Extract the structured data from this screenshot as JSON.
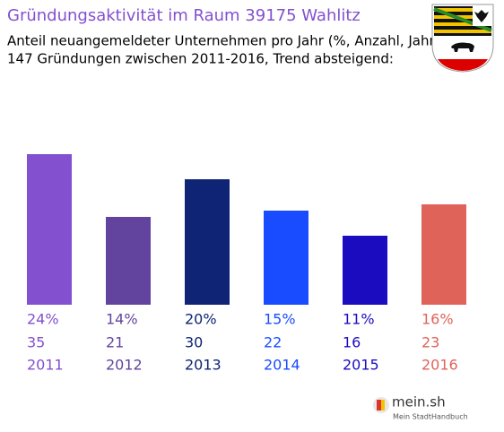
{
  "chart_data": {
    "type": "bar",
    "title": "Gründungsaktivität im Raum 39175 Wahlitz",
    "subtitle": [
      "Anteil neuangemeldeter Unternehmen pro Jahr (%, Anzahl, Jahr)",
      "147 Gründungen zwischen 2011-2016, Trend absteigend:"
    ],
    "categories": [
      "2011",
      "2012",
      "2013",
      "2014",
      "2015",
      "2016"
    ],
    "values": [
      24,
      14,
      20,
      15,
      11,
      16
    ],
    "value_labels": [
      "24%",
      "14%",
      "20%",
      "15%",
      "11%",
      "16%"
    ],
    "counts": [
      35,
      21,
      30,
      22,
      16,
      23
    ],
    "colors": [
      "#8350cf",
      "#62449f",
      "#0f2474",
      "#1a4cff",
      "#1c0cc0",
      "#e0635a"
    ]
  },
  "branding": {
    "name": "mein.sh",
    "tagline": "Mein StadtHandbuch"
  }
}
